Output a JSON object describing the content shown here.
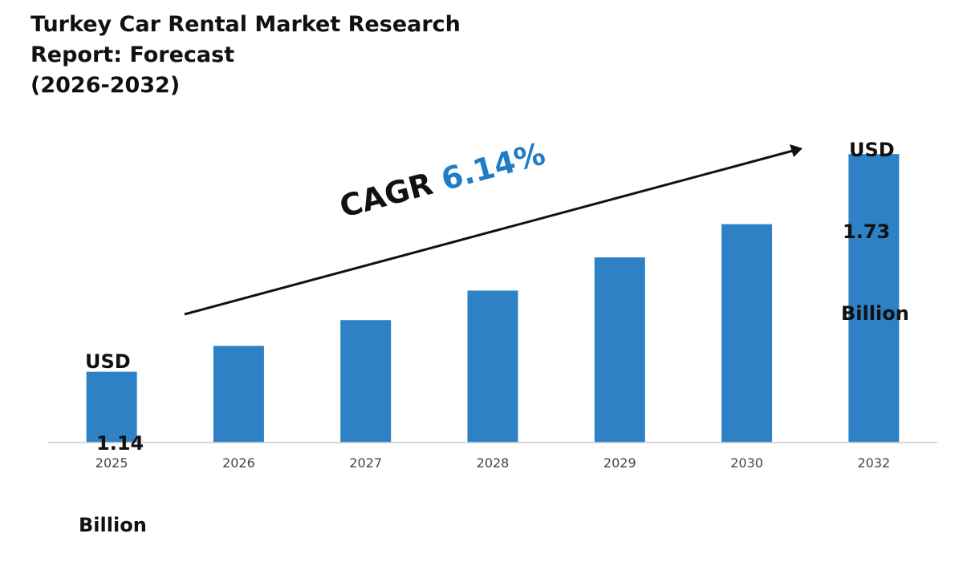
{
  "chart_data": {
    "type": "bar",
    "title": "Turkey Car Rental Market Research Report: Forecast (2026-2032)",
    "title_lines": [
      "Turkey Car Rental Market Research",
      "Report: Forecast",
      "(2026-2032)"
    ],
    "categories": [
      "2025",
      "2026",
      "2027",
      "2028",
      "2029",
      "2030",
      "2032"
    ],
    "values": [
      1.14,
      1.21,
      1.28,
      1.36,
      1.45,
      1.54,
      1.73
    ],
    "ylim": [
      0.948,
      1.8
    ],
    "xlabel": "",
    "ylabel": "",
    "grid": false,
    "bar_color": "#2e81c4",
    "annotations": {
      "start_label": [
        "USD",
        "1.14",
        "Billion"
      ],
      "end_label": [
        "USD",
        "1.73",
        "Billion"
      ],
      "cagr_prefix": "CAGR",
      "cagr_value": "6.14%",
      "cagr_color": "#1f7cc6"
    }
  }
}
